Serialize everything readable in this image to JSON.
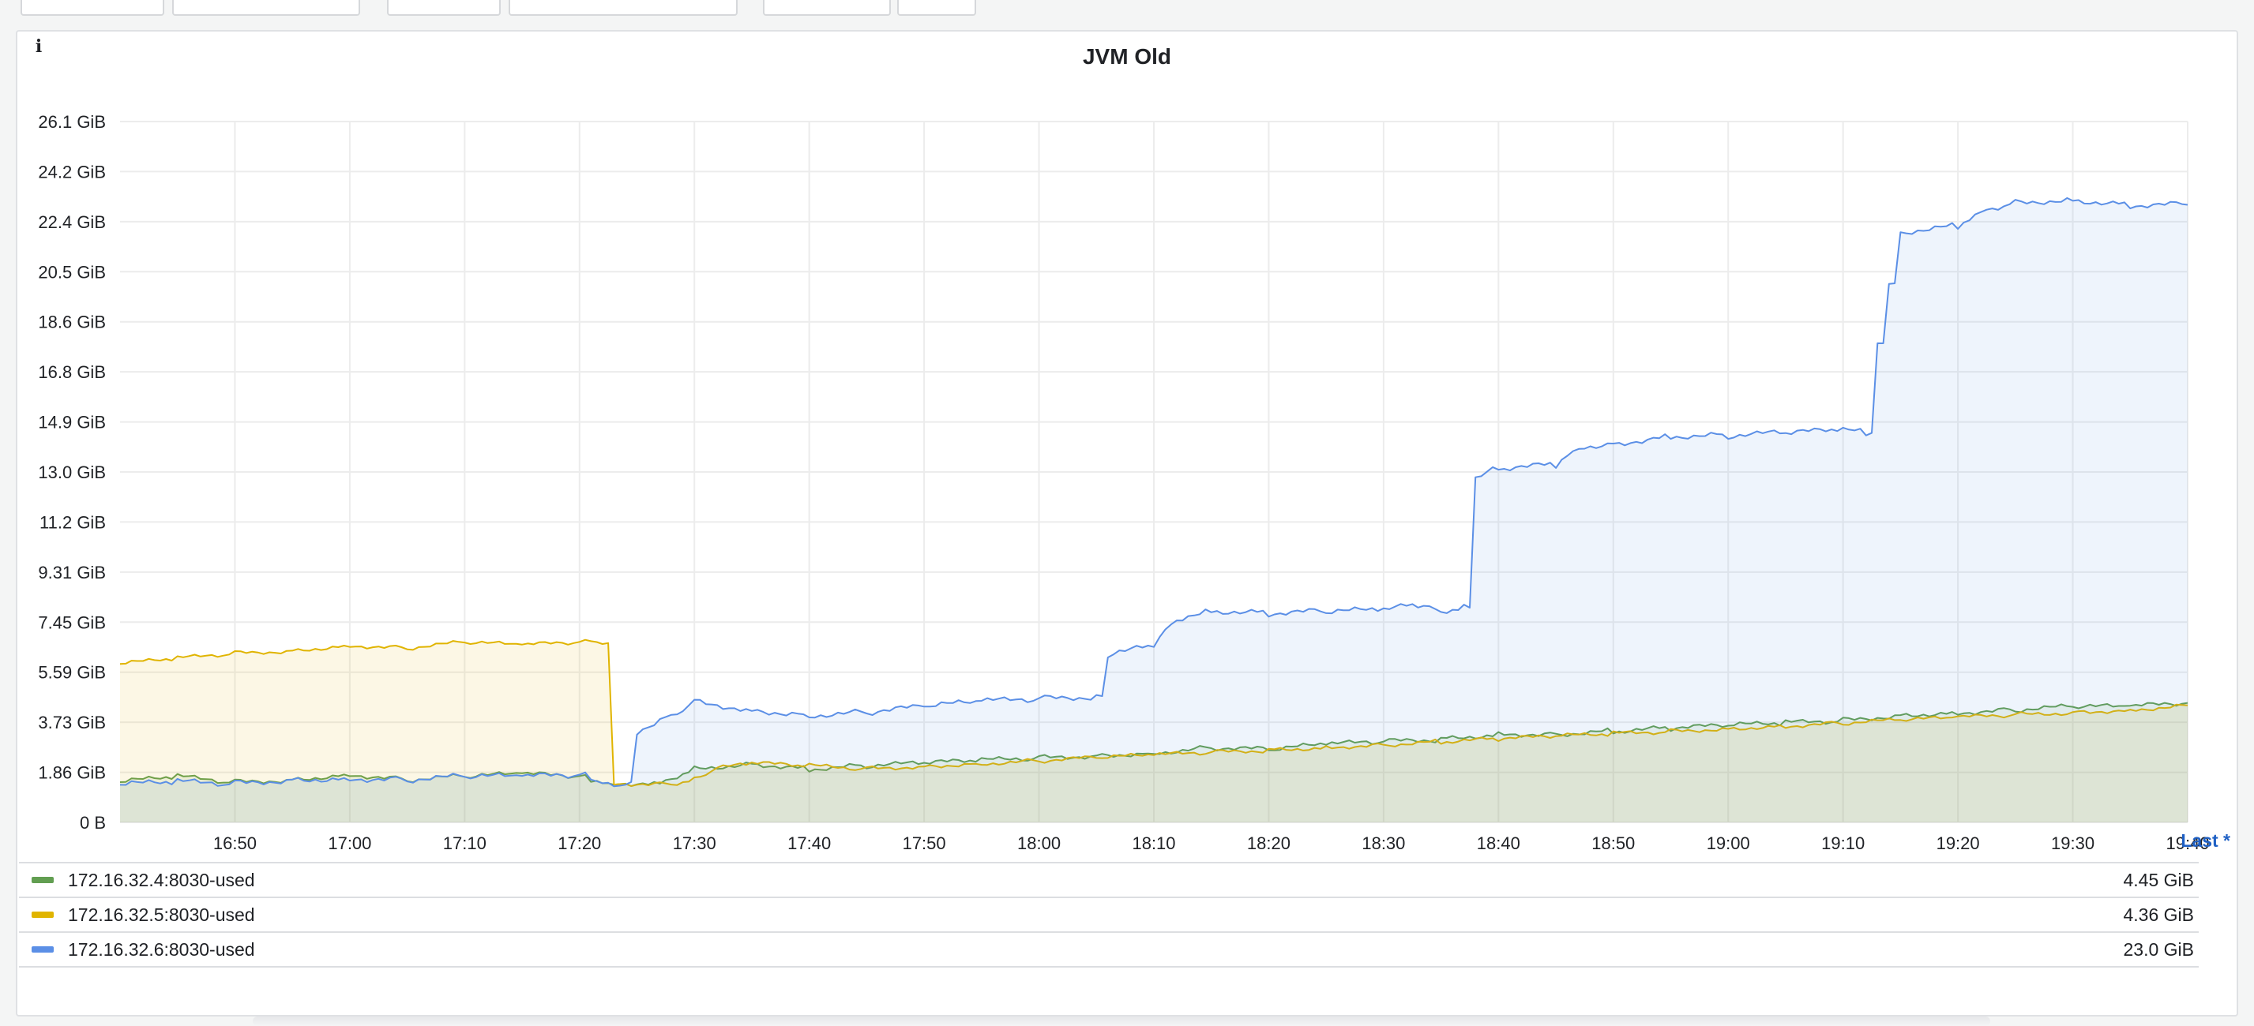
{
  "panel": {
    "title": "JVM Old",
    "info_icon": "info-icon"
  },
  "legend": {
    "header": "Last *",
    "items": [
      {
        "label": "172.16.32.4:8030-used",
        "value": "4.45 GiB",
        "color": "#629e51"
      },
      {
        "label": "172.16.32.5:8030-used",
        "value": "4.36 GiB",
        "color": "#e0b400"
      },
      {
        "label": "172.16.32.6:8030-used",
        "value": "23.0 GiB",
        "color": "#5b8fe6"
      }
    ]
  },
  "chart_data": {
    "type": "area",
    "title": "JVM Old",
    "xlabel": "",
    "ylabel": "",
    "x_tick_labels": [
      "16:50",
      "17:00",
      "17:10",
      "17:20",
      "17:30",
      "17:40",
      "17:50",
      "18:00",
      "18:10",
      "18:20",
      "18:30",
      "18:40",
      "18:50",
      "19:00",
      "19:10",
      "19:20",
      "19:30",
      "19:40"
    ],
    "y_tick_labels": [
      "0 B",
      "1.86 GiB",
      "3.73 GiB",
      "5.59 GiB",
      "7.45 GiB",
      "9.31 GiB",
      "11.2 GiB",
      "13.0 GiB",
      "14.9 GiB",
      "16.8 GiB",
      "18.6 GiB",
      "20.5 GiB",
      "22.4 GiB",
      "24.2 GiB",
      "26.1 GiB"
    ],
    "ylim": [
      0,
      26.1
    ],
    "xlim": [
      "16:40",
      "19:40"
    ],
    "grid": true,
    "unit": "GiB",
    "series": [
      {
        "name": "172.16.32.4:8030-used",
        "color": "#629e51",
        "points": [
          [
            "16:40",
            1.5
          ],
          [
            "16:45",
            1.7
          ],
          [
            "16:50",
            1.5
          ],
          [
            "16:55",
            1.6
          ],
          [
            "17:00",
            1.8
          ],
          [
            "17:05",
            1.6
          ],
          [
            "17:10",
            1.7
          ],
          [
            "17:15",
            1.8
          ],
          [
            "17:20",
            1.7
          ],
          [
            "17:21",
            1.6
          ],
          [
            "17:23",
            1.45
          ],
          [
            "17:27",
            1.5
          ],
          [
            "17:30",
            2.0
          ],
          [
            "17:35",
            2.2
          ],
          [
            "17:40",
            2.0
          ],
          [
            "17:45",
            2.1
          ],
          [
            "17:50",
            2.2
          ],
          [
            "17:55",
            2.3
          ],
          [
            "18:00",
            2.4
          ],
          [
            "18:05",
            2.5
          ],
          [
            "18:10",
            2.6
          ],
          [
            "18:15",
            2.8
          ],
          [
            "18:20",
            2.7
          ],
          [
            "18:25",
            2.9
          ],
          [
            "18:30",
            3.0
          ],
          [
            "18:35",
            3.1
          ],
          [
            "18:40",
            3.3
          ],
          [
            "18:45",
            3.3
          ],
          [
            "18:50",
            3.4
          ],
          [
            "18:55",
            3.5
          ],
          [
            "19:00",
            3.6
          ],
          [
            "19:05",
            3.7
          ],
          [
            "19:10",
            3.8
          ],
          [
            "19:15",
            4.0
          ],
          [
            "19:20",
            4.1
          ],
          [
            "19:25",
            4.2
          ],
          [
            "19:30",
            4.3
          ],
          [
            "19:35",
            4.3
          ],
          [
            "19:40",
            4.45
          ]
        ]
      },
      {
        "name": "172.16.32.5:8030-used",
        "color": "#e0b400",
        "points": [
          [
            "16:40",
            5.9
          ],
          [
            "16:45",
            6.1
          ],
          [
            "16:50",
            6.3
          ],
          [
            "16:55",
            6.4
          ],
          [
            "17:00",
            6.6
          ],
          [
            "17:05",
            6.5
          ],
          [
            "17:10",
            6.7
          ],
          [
            "17:15",
            6.6
          ],
          [
            "17:20",
            6.7
          ],
          [
            "17:22",
            6.7
          ],
          [
            "17:23",
            1.45
          ],
          [
            "17:28",
            1.45
          ],
          [
            "17:30",
            1.6
          ],
          [
            "17:32",
            2.0
          ],
          [
            "17:35",
            2.2
          ],
          [
            "17:40",
            2.1
          ],
          [
            "17:45",
            2.0
          ],
          [
            "17:50",
            2.1
          ],
          [
            "17:55",
            2.2
          ],
          [
            "18:00",
            2.3
          ],
          [
            "18:05",
            2.4
          ],
          [
            "18:10",
            2.5
          ],
          [
            "18:15",
            2.6
          ],
          [
            "18:20",
            2.7
          ],
          [
            "18:25",
            2.8
          ],
          [
            "18:30",
            2.9
          ],
          [
            "18:35",
            3.0
          ],
          [
            "18:40",
            3.1
          ],
          [
            "18:45",
            3.2
          ],
          [
            "18:50",
            3.3
          ],
          [
            "18:55",
            3.4
          ],
          [
            "19:00",
            3.5
          ],
          [
            "19:05",
            3.6
          ],
          [
            "19:10",
            3.7
          ],
          [
            "19:15",
            3.8
          ],
          [
            "19:20",
            3.9
          ],
          [
            "19:25",
            4.0
          ],
          [
            "19:30",
            4.1
          ],
          [
            "19:35",
            4.2
          ],
          [
            "19:40",
            4.36
          ]
        ]
      },
      {
        "name": "172.16.32.6:8030-used",
        "color": "#5b8fe6",
        "points": [
          [
            "16:40",
            1.4
          ],
          [
            "16:45",
            1.5
          ],
          [
            "16:50",
            1.45
          ],
          [
            "16:55",
            1.6
          ],
          [
            "17:00",
            1.65
          ],
          [
            "17:05",
            1.6
          ],
          [
            "17:10",
            1.7
          ],
          [
            "17:15",
            1.7
          ],
          [
            "17:20",
            1.75
          ],
          [
            "17:21",
            1.7
          ],
          [
            "17:22",
            1.4
          ],
          [
            "17:24",
            1.4
          ],
          [
            "17:25",
            3.4
          ],
          [
            "17:28",
            4.0
          ],
          [
            "17:30",
            4.5
          ],
          [
            "17:35",
            4.2
          ],
          [
            "17:40",
            4.0
          ],
          [
            "17:45",
            4.1
          ],
          [
            "17:50",
            4.3
          ],
          [
            "17:55",
            4.5
          ],
          [
            "18:00",
            4.6
          ],
          [
            "18:05",
            4.7
          ],
          [
            "18:06",
            6.2
          ],
          [
            "18:10",
            6.6
          ],
          [
            "18:12",
            7.6
          ],
          [
            "18:15",
            7.9
          ],
          [
            "18:20",
            7.8
          ],
          [
            "18:25",
            7.85
          ],
          [
            "18:30",
            7.9
          ],
          [
            "18:33",
            8.1
          ],
          [
            "18:35",
            7.9
          ],
          [
            "18:37",
            8.0
          ],
          [
            "18:38",
            12.8
          ],
          [
            "18:40",
            13.2
          ],
          [
            "18:45",
            13.3
          ],
          [
            "18:47",
            14.0
          ],
          [
            "18:50",
            14.1
          ],
          [
            "18:55",
            14.4
          ],
          [
            "19:00",
            14.4
          ],
          [
            "19:05",
            14.5
          ],
          [
            "19:10",
            14.6
          ],
          [
            "19:12",
            14.5
          ],
          [
            "19:13",
            17.8
          ],
          [
            "19:14",
            20.0
          ],
          [
            "19:15",
            22.0
          ],
          [
            "19:20",
            22.2
          ],
          [
            "19:22",
            22.8
          ],
          [
            "19:25",
            23.1
          ],
          [
            "19:30",
            23.2
          ],
          [
            "19:35",
            23.0
          ],
          [
            "19:40",
            23.0
          ]
        ]
      }
    ]
  }
}
